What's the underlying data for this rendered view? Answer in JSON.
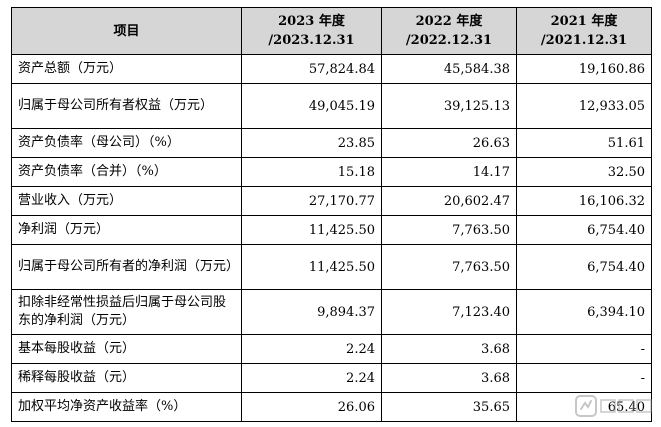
{
  "table": {
    "header": {
      "item": "项目",
      "columns": [
        {
          "year": "2023 年度",
          "date": "/2023.12.31"
        },
        {
          "year": "2022 年度",
          "date": "/2022.12.31"
        },
        {
          "year": "2021 年度",
          "date": "/2021.12.31"
        }
      ]
    },
    "rows": [
      {
        "label": "资产总额（万元）",
        "values": [
          "57,824.84",
          "45,584.38",
          "19,160.86"
        ]
      },
      {
        "label": "归属于母公司所有者权益（万元）",
        "values": [
          "49,045.19",
          "39,125.13",
          "12,933.05"
        ]
      },
      {
        "label": "资产负债率（母公司）（%）",
        "values": [
          "23.85",
          "26.63",
          "51.61"
        ]
      },
      {
        "label": "资产负债率（合并）（%）",
        "values": [
          "15.18",
          "14.17",
          "32.50"
        ]
      },
      {
        "label": "营业收入（万元）",
        "values": [
          "27,170.77",
          "20,602.47",
          "16,106.32"
        ]
      },
      {
        "label": "净利润（万元）",
        "values": [
          "11,425.50",
          "7,763.50",
          "6,754.40"
        ]
      },
      {
        "label": "归属于母公司所有者的净利润（万元）",
        "values": [
          "11,425.50",
          "7,763.50",
          "6,754.40"
        ]
      },
      {
        "label": "扣除非经常性损益后归属于母公司股东的净利润（万元）",
        "values": [
          "9,894.37",
          "7,123.40",
          "6,394.10"
        ]
      },
      {
        "label": "基本每股收益（元）",
        "values": [
          "2.24",
          "3.68",
          "-"
        ]
      },
      {
        "label": "稀释每股收益（元）",
        "values": [
          "2.24",
          "3.68",
          "-"
        ]
      },
      {
        "label": "加权平均净资产收益率（%）",
        "values": [
          "26.06",
          "35.65",
          "65.40"
        ]
      }
    ]
  },
  "watermark": {
    "icon": "watermark-logo-icon",
    "color": "#9a9a9a"
  }
}
